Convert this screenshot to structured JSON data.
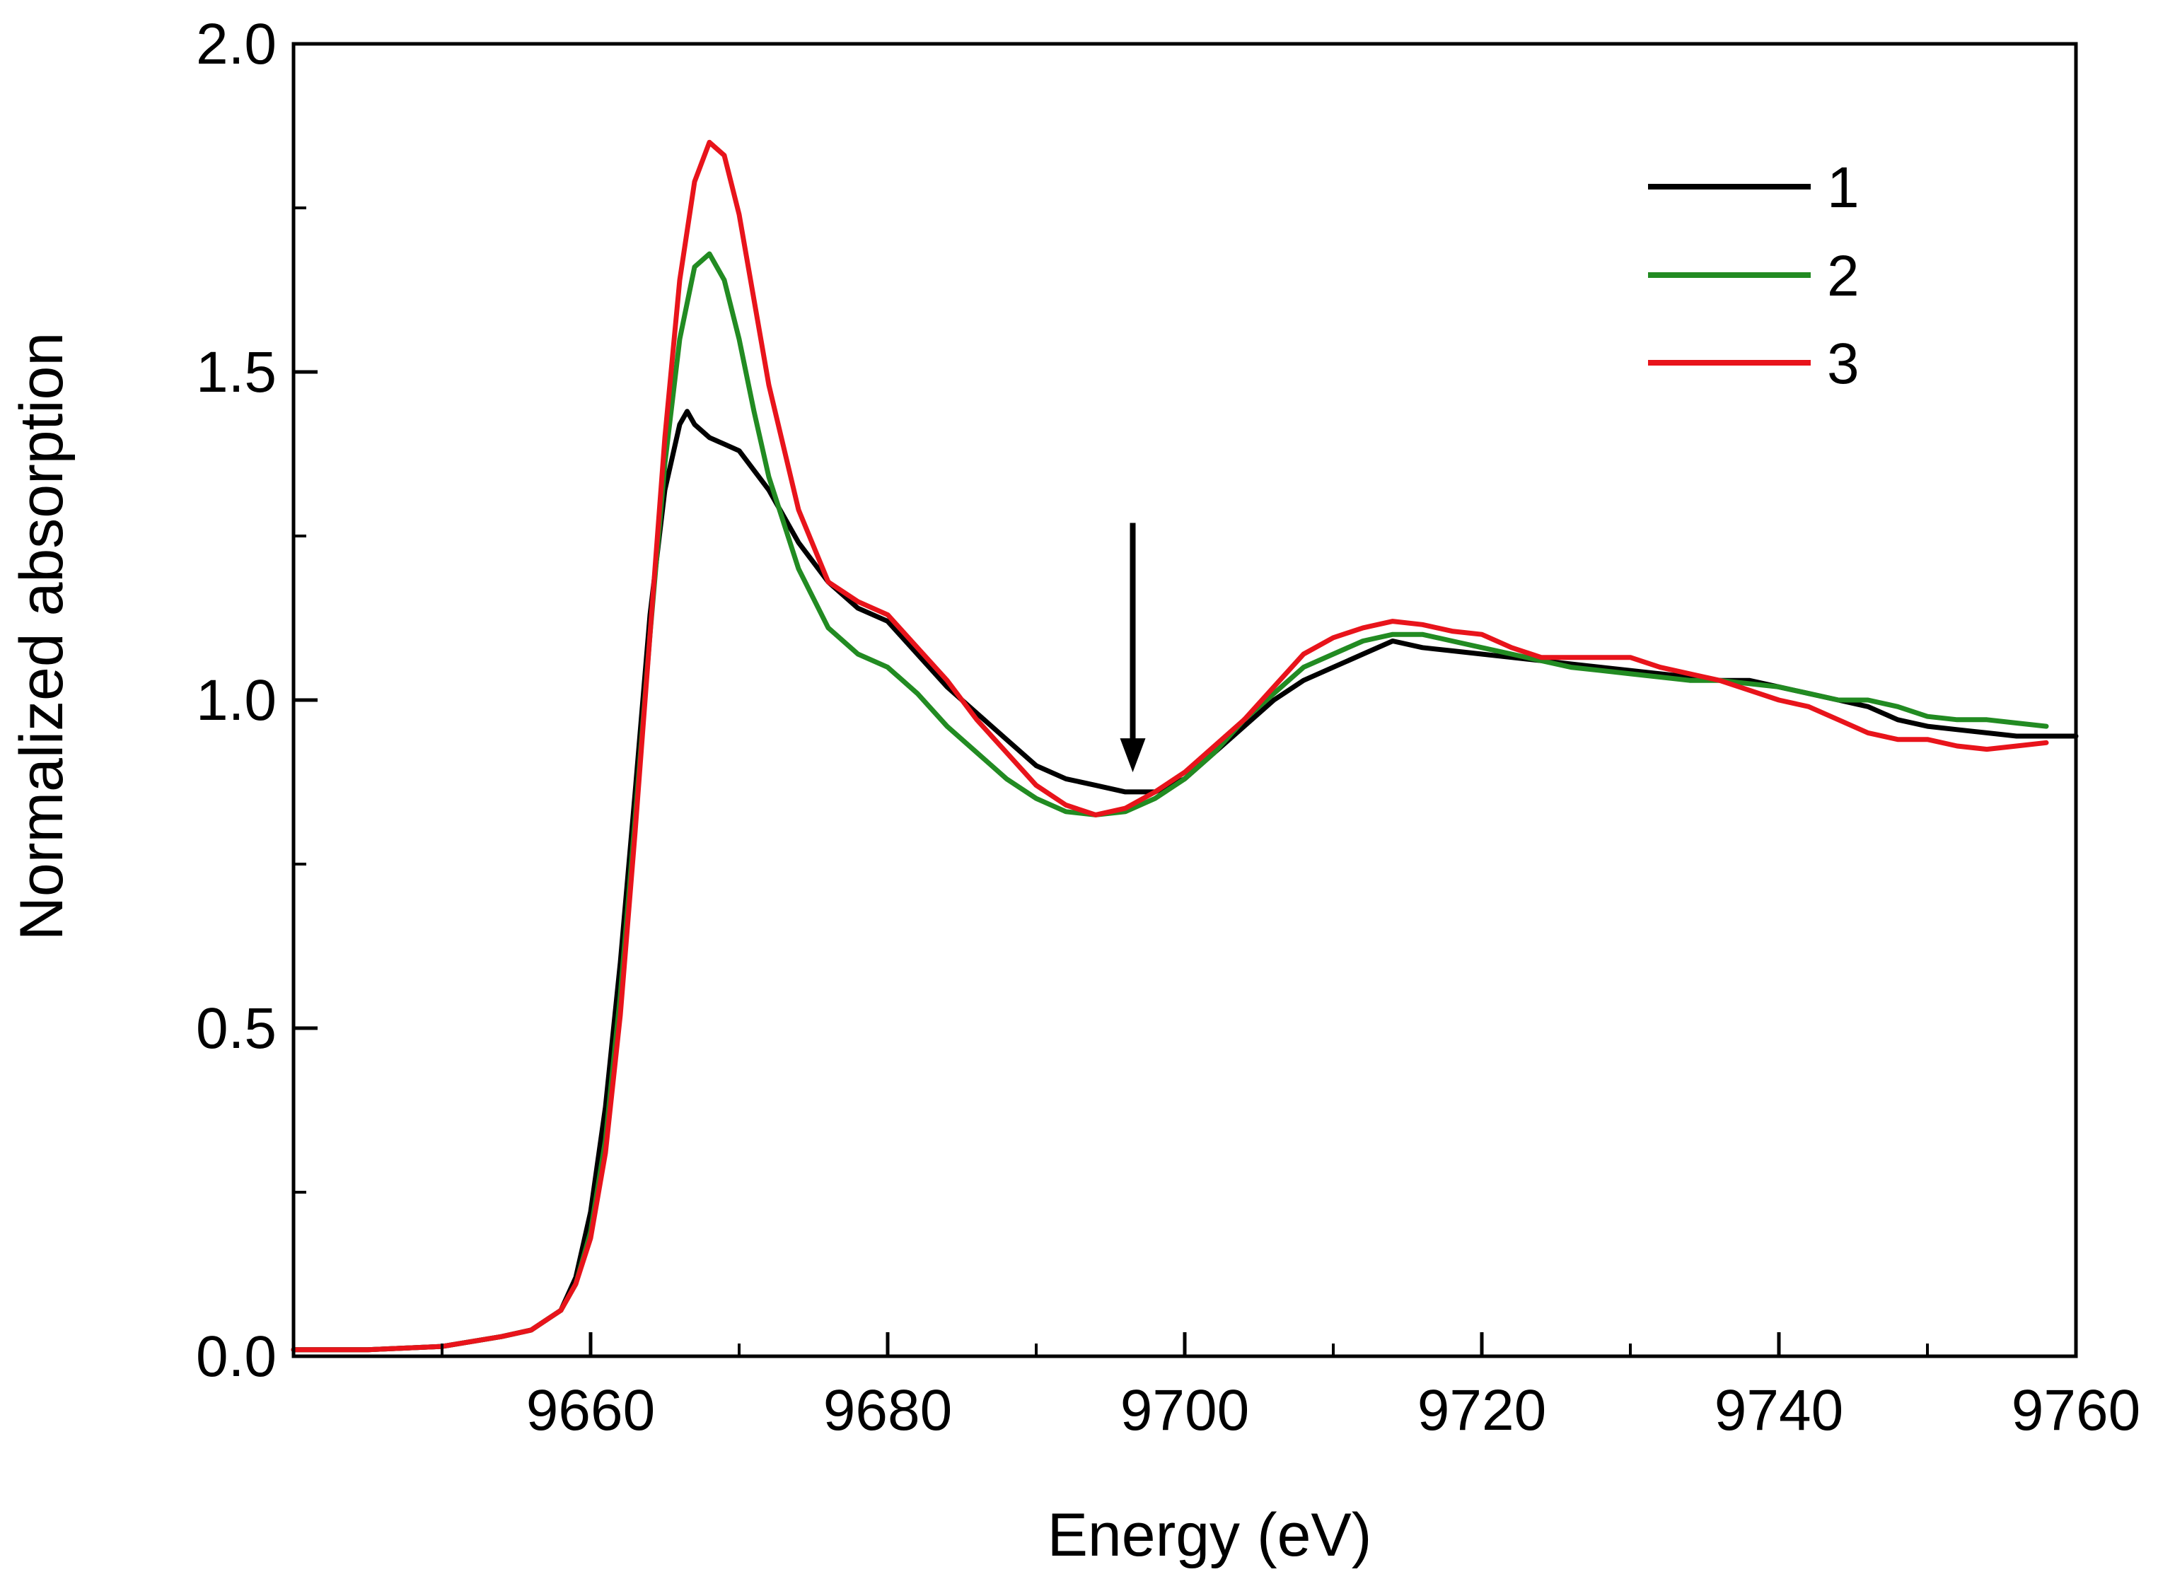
{
  "chart_data": {
    "type": "line",
    "title": "",
    "xlabel": "Energy (eV)",
    "ylabel": "Normalized absorption",
    "xlim": [
      9640,
      9760
    ],
    "ylim": [
      0.0,
      2.0
    ],
    "grid": false,
    "legend_position": "top-right",
    "x_ticks": [
      9660,
      9680,
      9700,
      9720,
      9740,
      9760
    ],
    "x_tick_labels": [
      "9660",
      "9680",
      "9700",
      "9720",
      "9740",
      "9760"
    ],
    "x_minor_ticks": [
      9650,
      9670,
      9690,
      9710,
      9730,
      9750
    ],
    "y_ticks": [
      0.0,
      0.5,
      1.0,
      1.5,
      2.0
    ],
    "y_tick_labels": [
      "0.0",
      "0.5",
      "1.0",
      "1.5",
      "2.0"
    ],
    "y_minor_ticks": [
      0.25,
      0.75,
      1.25,
      1.75
    ],
    "annotation": {
      "type": "arrow",
      "x": 9696.5,
      "y_from": 1.27,
      "y_to": 0.89
    },
    "series": [
      {
        "name": "1",
        "color": "#000000",
        "x": [
          9640,
          9645,
          9650,
          9654,
          9656,
          9658,
          9659,
          9660,
          9661,
          9662,
          9663,
          9664,
          9665,
          9666,
          9666.5,
          9667,
          9668,
          9669,
          9670,
          9672,
          9674,
          9676,
          9678,
          9680,
          9682,
          9684,
          9686,
          9688,
          9690,
          9692,
          9694,
          9696,
          9698,
          9700,
          9702,
          9704,
          9706,
          9708,
          9710,
          9712,
          9714,
          9716,
          9718,
          9720,
          9722,
          9724,
          9726,
          9728,
          9730,
          9732,
          9734,
          9736,
          9738,
          9740,
          9742,
          9744,
          9746,
          9748,
          9750,
          9752,
          9754,
          9756,
          9758,
          9760
        ],
        "values": [
          0.01,
          0.01,
          0.015,
          0.03,
          0.04,
          0.07,
          0.12,
          0.22,
          0.38,
          0.6,
          0.86,
          1.13,
          1.32,
          1.42,
          1.44,
          1.42,
          1.4,
          1.39,
          1.38,
          1.32,
          1.24,
          1.18,
          1.14,
          1.12,
          1.07,
          1.02,
          0.98,
          0.94,
          0.9,
          0.88,
          0.87,
          0.86,
          0.86,
          0.88,
          0.92,
          0.96,
          1.0,
          1.03,
          1.05,
          1.07,
          1.09,
          1.08,
          1.075,
          1.07,
          1.065,
          1.06,
          1.055,
          1.05,
          1.045,
          1.04,
          1.035,
          1.03,
          1.03,
          1.02,
          1.01,
          1.0,
          0.99,
          0.97,
          0.96,
          0.955,
          0.95,
          0.945,
          0.945,
          0.945
        ]
      },
      {
        "name": "2",
        "color": "#228b22",
        "x": [
          9640,
          9645,
          9650,
          9654,
          9656,
          9658,
          9659,
          9660,
          9661,
          9662,
          9663,
          9664,
          9665,
          9666,
          9667,
          9668,
          9669,
          9670,
          9671,
          9672,
          9674,
          9676,
          9678,
          9680,
          9682,
          9684,
          9686,
          9688,
          9690,
          9692,
          9694,
          9696,
          9698,
          9700,
          9702,
          9704,
          9706,
          9708,
          9710,
          9712,
          9714,
          9716,
          9718,
          9720,
          9722,
          9724,
          9726,
          9728,
          9730,
          9732,
          9734,
          9736,
          9738,
          9740,
          9742,
          9744,
          9746,
          9748,
          9750,
          9752,
          9754,
          9756,
          9758
        ],
        "values": [
          0.01,
          0.01,
          0.015,
          0.03,
          0.04,
          0.07,
          0.11,
          0.19,
          0.33,
          0.55,
          0.82,
          1.1,
          1.36,
          1.55,
          1.66,
          1.68,
          1.64,
          1.55,
          1.44,
          1.34,
          1.2,
          1.11,
          1.07,
          1.05,
          1.01,
          0.96,
          0.92,
          0.88,
          0.85,
          0.83,
          0.825,
          0.83,
          0.85,
          0.88,
          0.92,
          0.97,
          1.01,
          1.05,
          1.07,
          1.09,
          1.1,
          1.1,
          1.09,
          1.08,
          1.07,
          1.06,
          1.05,
          1.045,
          1.04,
          1.035,
          1.03,
          1.03,
          1.025,
          1.02,
          1.01,
          1.0,
          1.0,
          0.99,
          0.975,
          0.97,
          0.97,
          0.965,
          0.96
        ]
      },
      {
        "name": "3",
        "color": "#e8141b",
        "x": [
          9640,
          9645,
          9650,
          9654,
          9656,
          9658,
          9659,
          9660,
          9661,
          9662,
          9663,
          9664,
          9665,
          9666,
          9667,
          9668,
          9669,
          9670,
          9671,
          9672,
          9674,
          9676,
          9678,
          9680,
          9682,
          9684,
          9686,
          9688,
          9690,
          9692,
          9694,
          9696,
          9698,
          9700,
          9702,
          9704,
          9706,
          9708,
          9710,
          9712,
          9714,
          9716,
          9718,
          9720,
          9722,
          9724,
          9726,
          9728,
          9730,
          9732,
          9734,
          9736,
          9738,
          9740,
          9742,
          9744,
          9746,
          9748,
          9750,
          9752,
          9754,
          9756,
          9758
        ],
        "values": [
          0.01,
          0.01,
          0.015,
          0.03,
          0.04,
          0.07,
          0.11,
          0.18,
          0.31,
          0.52,
          0.8,
          1.1,
          1.4,
          1.64,
          1.79,
          1.85,
          1.83,
          1.74,
          1.61,
          1.48,
          1.29,
          1.18,
          1.15,
          1.13,
          1.08,
          1.03,
          0.97,
          0.92,
          0.87,
          0.84,
          0.825,
          0.835,
          0.86,
          0.89,
          0.93,
          0.97,
          1.02,
          1.07,
          1.095,
          1.11,
          1.12,
          1.115,
          1.105,
          1.1,
          1.08,
          1.065,
          1.065,
          1.065,
          1.065,
          1.05,
          1.04,
          1.03,
          1.015,
          1.0,
          0.99,
          0.97,
          0.95,
          0.94,
          0.94,
          0.93,
          0.925,
          0.93,
          0.935
        ]
      }
    ]
  }
}
